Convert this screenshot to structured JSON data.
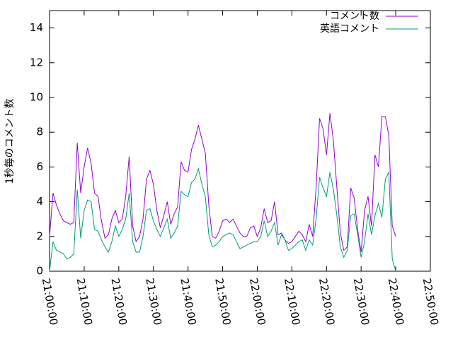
{
  "chart_data": {
    "type": "line",
    "ylabel": "1秒毎のコメント数",
    "x": [
      "21:00:00",
      "21:01:00",
      "21:02:00",
      "21:03:00",
      "21:04:00",
      "21:05:00",
      "21:06:00",
      "21:07:00",
      "21:08:00",
      "21:09:00",
      "21:10:00",
      "21:11:00",
      "21:12:00",
      "21:13:00",
      "21:14:00",
      "21:15:00",
      "21:16:00",
      "21:17:00",
      "21:18:00",
      "21:19:00",
      "21:20:00",
      "21:21:00",
      "21:22:00",
      "21:23:00",
      "21:24:00",
      "21:25:00",
      "21:26:00",
      "21:27:00",
      "21:28:00",
      "21:29:00",
      "21:30:00",
      "21:31:00",
      "21:32:00",
      "21:33:00",
      "21:34:00",
      "21:35:00",
      "21:36:00",
      "21:37:00",
      "21:38:00",
      "21:39:00",
      "21:40:00",
      "21:41:00",
      "21:42:00",
      "21:43:00",
      "21:44:00",
      "21:45:00",
      "21:46:00",
      "21:47:00",
      "21:48:00",
      "21:49:00",
      "21:50:00",
      "21:51:00",
      "21:52:00",
      "21:53:00",
      "21:54:00",
      "21:55:00",
      "21:56:00",
      "21:57:00",
      "21:58:00",
      "21:59:00",
      "22:00:00",
      "22:01:00",
      "22:02:00",
      "22:03:00",
      "22:04:00",
      "22:05:00",
      "22:06:00",
      "22:07:00",
      "22:08:00",
      "22:09:00",
      "22:10:00",
      "22:11:00",
      "22:12:00",
      "22:13:00",
      "22:14:00",
      "22:15:00",
      "22:16:00",
      "22:17:00",
      "22:18:00",
      "22:19:00",
      "22:20:00",
      "22:21:00",
      "22:22:00",
      "22:23:00",
      "22:24:00",
      "22:25:00",
      "22:26:00",
      "22:27:00",
      "22:28:00",
      "22:29:00",
      "22:30:00",
      "22:31:00",
      "22:32:00",
      "22:33:00",
      "22:34:00",
      "22:35:00",
      "22:36:00",
      "22:37:00",
      "22:38:00",
      "22:39:00",
      "22:40:00"
    ],
    "series": [
      {
        "name": "コメント数",
        "color": "#9400d3",
        "values": [
          2.0,
          4.5,
          3.8,
          3.3,
          2.9,
          2.8,
          2.7,
          2.8,
          7.4,
          4.5,
          6.0,
          7.1,
          6.2,
          4.5,
          4.3,
          2.9,
          1.9,
          2.1,
          3.0,
          3.5,
          2.8,
          3.0,
          4.3,
          6.6,
          2.6,
          1.7,
          2.0,
          3.0,
          5.3,
          5.8,
          5.0,
          3.5,
          2.5,
          3.2,
          4.0,
          2.7,
          3.3,
          3.7,
          6.3,
          5.8,
          5.7,
          7.0,
          7.6,
          8.4,
          7.6,
          6.8,
          3.8,
          2.0,
          1.9,
          2.3,
          2.9,
          3.0,
          2.8,
          3.0,
          2.6,
          2.2,
          2.0,
          2.0,
          2.5,
          2.6,
          2.0,
          2.5,
          3.6,
          2.8,
          2.9,
          4.0,
          2.1,
          2.2,
          1.8,
          1.6,
          1.7,
          2.0,
          2.3,
          2.1,
          1.7,
          2.7,
          2.0,
          4.8,
          8.8,
          8.2,
          6.7,
          9.1,
          7.5,
          4.8,
          2.2,
          1.2,
          1.4,
          4.8,
          4.2,
          2.4,
          1.1,
          3.5,
          4.3,
          2.6,
          6.7,
          6.0,
          8.9,
          8.9,
          7.8,
          2.6,
          2.0
        ]
      },
      {
        "name": "英語コメント",
        "color": "#009e73",
        "values": [
          0,
          1.7,
          1.2,
          1.1,
          1.0,
          0.7,
          0.8,
          1.0,
          4.7,
          1.9,
          3.5,
          4.1,
          4.0,
          2.4,
          2.3,
          1.8,
          1.4,
          1.1,
          1.7,
          2.6,
          2.0,
          2.4,
          3.0,
          4.5,
          1.7,
          1.1,
          1.1,
          2.0,
          3.5,
          3.6,
          2.9,
          2.4,
          2.0,
          2.5,
          3.0,
          1.9,
          2.2,
          2.6,
          4.6,
          4.4,
          4.3,
          5.1,
          5.3,
          5.9,
          5.0,
          4.3,
          2.1,
          1.4,
          1.5,
          1.7,
          2.0,
          2.1,
          2.2,
          2.1,
          1.7,
          1.3,
          1.4,
          1.5,
          1.6,
          1.7,
          1.7,
          2.0,
          2.9,
          2.0,
          2.3,
          2.8,
          1.5,
          2.1,
          1.8,
          1.2,
          1.3,
          1.5,
          1.7,
          1.8,
          1.2,
          1.8,
          1.5,
          3.0,
          5.4,
          4.8,
          4.3,
          5.7,
          4.7,
          3.2,
          1.4,
          0.8,
          1.2,
          3.2,
          3.3,
          2.1,
          0.8,
          1.7,
          3.3,
          2.1,
          3.2,
          3.9,
          3.1,
          5.3,
          5.7,
          0.7,
          0.0
        ]
      }
    ],
    "xlim": [
      "21:00:00",
      "22:50:00"
    ],
    "xticks": [
      "21:00:00",
      "21:10:00",
      "21:20:00",
      "21:30:00",
      "21:40:00",
      "21:50:00",
      "22:00:00",
      "22:10:00",
      "22:20:00",
      "22:30:00",
      "22:40:00",
      "22:50:00"
    ],
    "ylim": [
      0,
      15
    ],
    "yticks": [
      0,
      2,
      4,
      6,
      8,
      10,
      12,
      14
    ],
    "legend": "top-right"
  }
}
